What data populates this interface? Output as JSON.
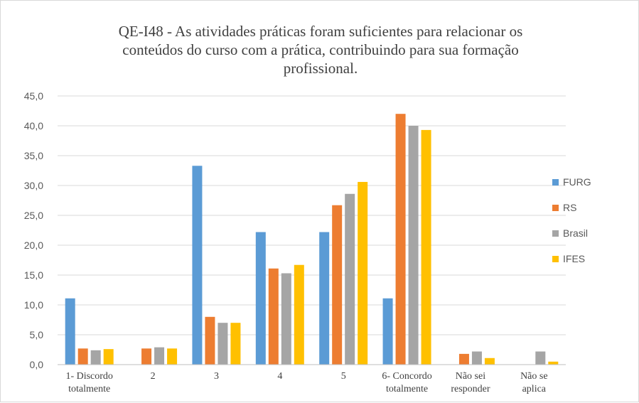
{
  "chart_data": {
    "type": "bar",
    "title": "QE-I48 - As atividades práticas foram suficientes para relacionar os\nconteúdos do curso com a prática, contribuindo  para sua formação\nprofissional.",
    "categories": [
      "1- Discordo\ntotalmente",
      "2",
      "3",
      "4",
      "5",
      "6- Concordo\ntotalmente",
      "Não sei\nresponder",
      "Não se\naplica"
    ],
    "series": [
      {
        "name": "FURG",
        "color": "#5B9BD5",
        "values": [
          11.1,
          0.0,
          33.3,
          22.2,
          22.2,
          11.1,
          0.0,
          0.0
        ]
      },
      {
        "name": "RS",
        "color": "#ED7D31",
        "values": [
          2.7,
          2.7,
          8.0,
          16.1,
          26.7,
          42.0,
          1.8,
          0.0
        ]
      },
      {
        "name": "Brasil",
        "color": "#A5A5A5",
        "values": [
          2.4,
          2.9,
          7.0,
          15.3,
          28.6,
          40.0,
          2.2,
          2.2
        ]
      },
      {
        "name": "IFES",
        "color": "#FFC000",
        "values": [
          2.6,
          2.7,
          7.0,
          16.7,
          30.6,
          39.3,
          1.1,
          0.5
        ]
      }
    ],
    "ylim": [
      0,
      45
    ],
    "ytick_step": 5,
    "ytick_labels": [
      "0,0",
      "5,0",
      "10,0",
      "15,0",
      "20,0",
      "25,0",
      "30,0",
      "35,0",
      "40,0",
      "45,0"
    ],
    "grid": true,
    "legend_position": "right",
    "xlabel": "",
    "ylabel": ""
  }
}
